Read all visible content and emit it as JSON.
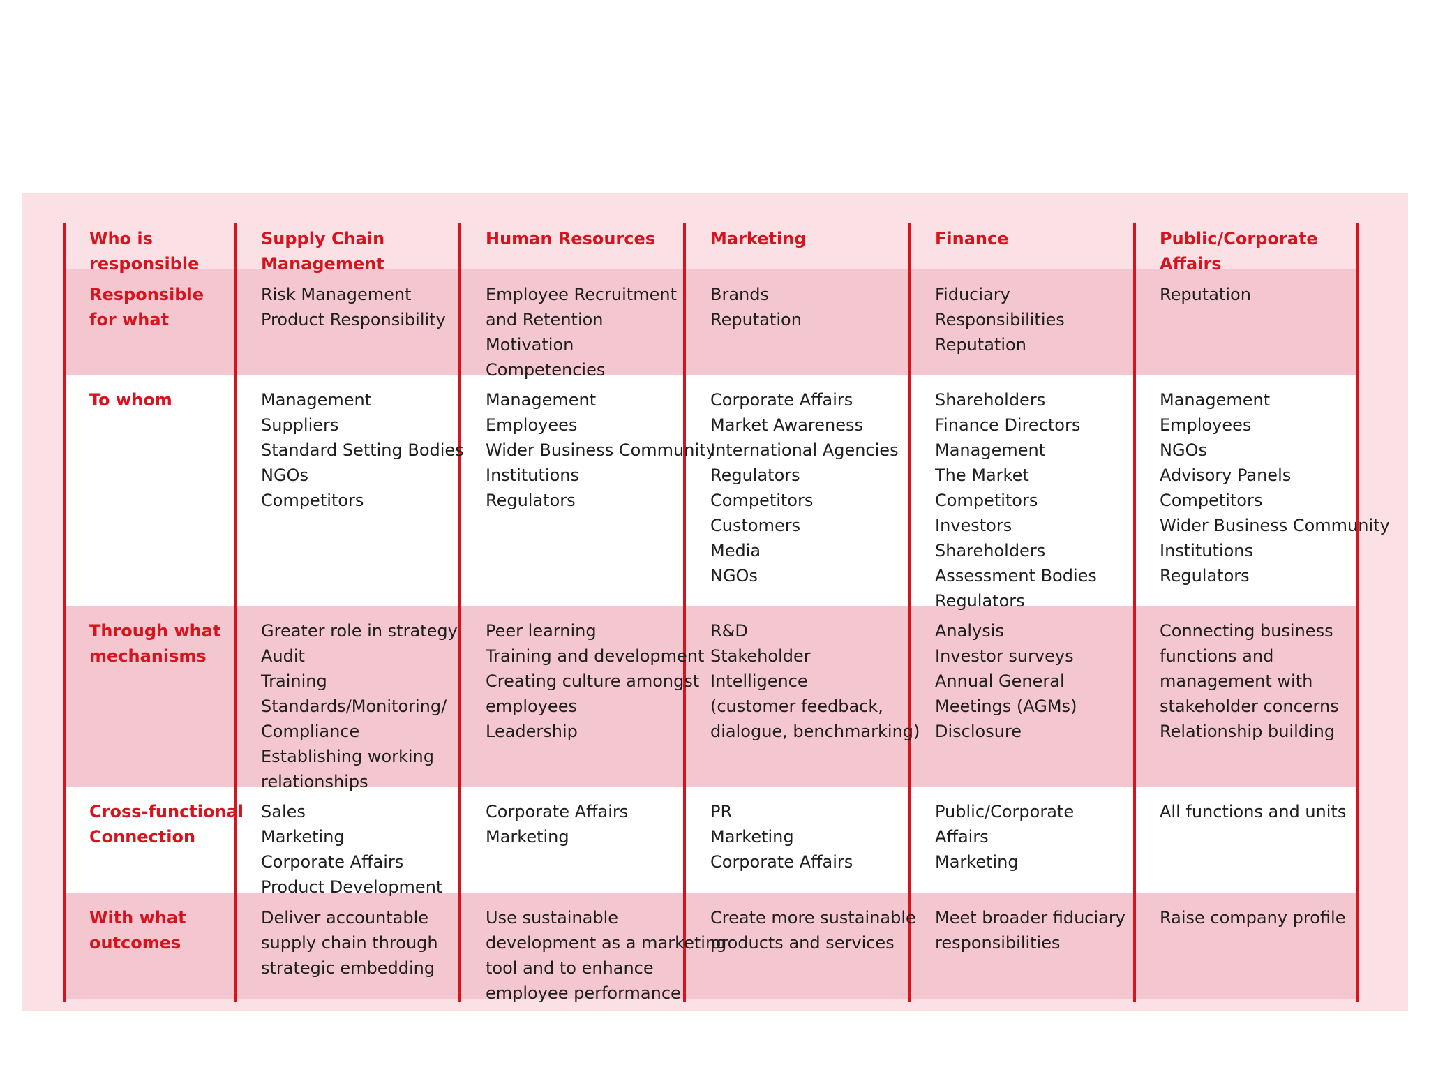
{
  "table": {
    "columns": [
      {
        "label_lines": [
          "Who is",
          "responsible"
        ]
      },
      {
        "label_lines": [
          "Supply Chain",
          "Management"
        ]
      },
      {
        "label_lines": [
          "Human Resources"
        ]
      },
      {
        "label_lines": [
          "Marketing"
        ]
      },
      {
        "label_lines": [
          "Finance"
        ]
      },
      {
        "label_lines": [
          "Public/Corporate",
          "Affairs"
        ]
      }
    ],
    "rows": [
      {
        "label_lines": [
          "Responsible",
          "for what"
        ],
        "cells": [
          [
            "Risk Management",
            "Product Responsibility"
          ],
          [
            "Employee Recruitment",
            "and Retention",
            "Motivation",
            "Competencies"
          ],
          [
            "Brands",
            "Reputation"
          ],
          [
            "Fiduciary",
            "Responsibilities",
            "Reputation"
          ],
          [
            "Reputation"
          ]
        ]
      },
      {
        "label_lines": [
          "To whom"
        ],
        "cells": [
          [
            "Management",
            "Suppliers",
            "Standard Setting Bodies",
            "NGOs",
            "Competitors"
          ],
          [
            "Management",
            "Employees",
            "Wider Business Community",
            "Institutions",
            "Regulators"
          ],
          [
            "Corporate Affairs",
            "Market Awareness",
            "International Agencies",
            "Regulators",
            "Competitors",
            "Customers",
            "Media",
            "NGOs"
          ],
          [
            "Shareholders",
            "Finance Directors",
            "Management",
            "The Market",
            "Competitors",
            "Investors",
            "Shareholders",
            "Assessment Bodies",
            "Regulators"
          ],
          [
            "Management",
            "Employees",
            "NGOs",
            "Advisory Panels",
            "Competitors",
            "Wider Business Community",
            "Institutions",
            "Regulators"
          ]
        ]
      },
      {
        "label_lines": [
          "Through what",
          "mechanisms"
        ],
        "cells": [
          [
            "Greater role in strategy",
            "Audit",
            "Training",
            "Standards/Monitoring/",
            "Compliance",
            "Establishing working",
            "relationships"
          ],
          [
            "Peer learning",
            "Training and development",
            "Creating culture amongst",
            "employees",
            "Leadership"
          ],
          [
            "R&D",
            "Stakeholder",
            "Intelligence",
            "(customer feedback,",
            "dialogue, benchmarking)"
          ],
          [
            "Analysis",
            "Investor surveys",
            "Annual General",
            "Meetings (AGMs)",
            "Disclosure"
          ],
          [
            "Connecting business",
            "functions and",
            "management with",
            "stakeholder concerns",
            "Relationship building"
          ]
        ]
      },
      {
        "label_lines": [
          "Cross-functional",
          "Connection"
        ],
        "cells": [
          [
            "Sales",
            "Marketing",
            "Corporate Affairs",
            "Product Development"
          ],
          [
            "Corporate Affairs",
            "Marketing"
          ],
          [
            "PR",
            "Marketing",
            "Corporate Affairs"
          ],
          [
            "Public/Corporate",
            "Affairs",
            "Marketing"
          ],
          [
            "All functions and units"
          ]
        ]
      },
      {
        "label_lines": [
          "With what",
          "outcomes"
        ],
        "cells": [
          [
            "Deliver accountable",
            "supply chain through",
            "strategic embedding"
          ],
          [
            "Use sustainable",
            "development as a marketing",
            "tool and to enhance",
            "employee performance"
          ],
          [
            "Create more sustainable",
            "products and services"
          ],
          [
            "Meet broader fiduciary",
            "responsibilities"
          ],
          [
            "Raise company profile"
          ]
        ]
      }
    ]
  },
  "colors": {
    "accent": "#d7141e",
    "panel_background": "#fbe1e5",
    "row_band_pink": "#f4c7d0",
    "row_band_white": "#ffffff",
    "text": "#1e1e1e"
  }
}
